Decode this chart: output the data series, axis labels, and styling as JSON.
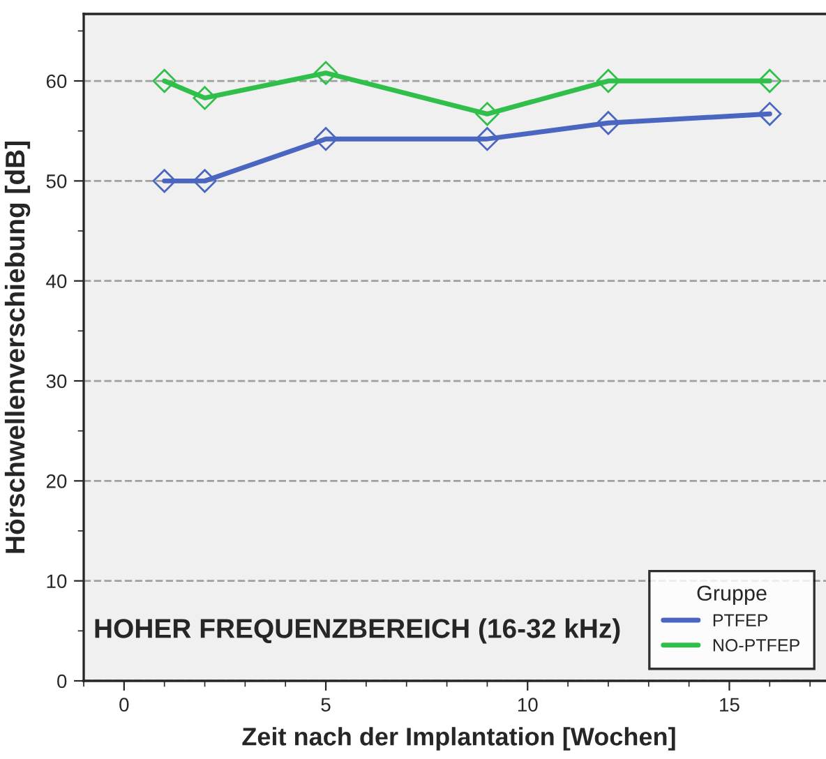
{
  "chart_data": {
    "type": "line",
    "xlabel": "Zeit nach der Implantation [Wochen]",
    "ylabel": "Hörschwellenverschiebung [dB]",
    "legend_title": "Gruppe",
    "annotations": [
      "HOHER FREQUENZBEREICH (16-32 kHz)"
    ],
    "x": [
      1,
      2,
      5,
      9,
      12,
      16
    ],
    "series": [
      {
        "name": "PTFEP",
        "color": "#4a66c0",
        "values": [
          50,
          50,
          54.2,
          54.2,
          55.8,
          56.7
        ]
      },
      {
        "name": "NO-PTFEP",
        "color": "#2fbf4a",
        "values": [
          60,
          58.3,
          60.8,
          56.7,
          60,
          60
        ]
      }
    ],
    "xlim": [
      -1,
      17.6
    ],
    "ylim": [
      0,
      66.7
    ],
    "xticks": [
      0,
      5,
      10,
      15
    ],
    "yticks": [
      0,
      10,
      20,
      30,
      40,
      50,
      60
    ],
    "grid": "y",
    "legend": "bottom right",
    "marker": "diamond",
    "line_style": "solid"
  }
}
